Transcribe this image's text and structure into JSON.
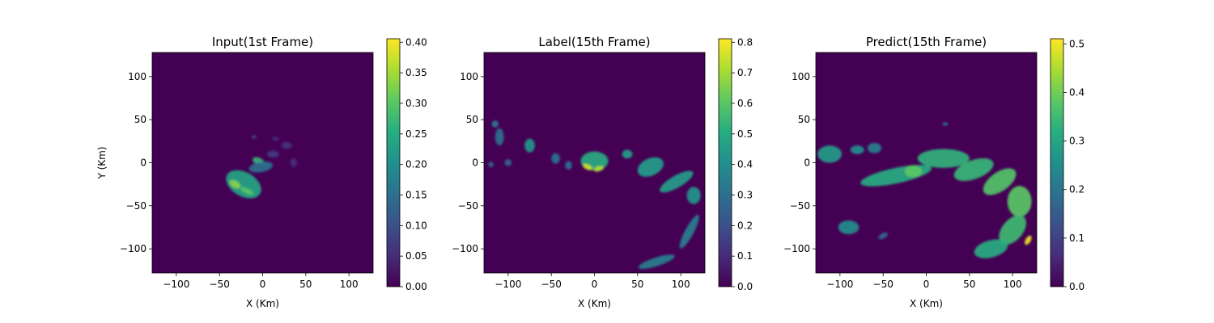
{
  "chart_data": [
    {
      "type": "heatmap",
      "title": "Input(1st Frame)",
      "xlabel": "X (Km)",
      "ylabel": "Y (Km)",
      "xlim": [
        -128,
        128
      ],
      "ylim": [
        -128,
        128
      ],
      "xticks": [
        -100,
        -50,
        0,
        50,
        100
      ],
      "yticks": [
        100,
        50,
        0,
        -50,
        -100
      ],
      "colormap": "viridis",
      "background_value": 0.0,
      "colorbar": {
        "range": [
          0.0,
          0.4057
        ],
        "ticks": [
          "0.00",
          "0.05",
          "0.10",
          "0.15",
          "0.20",
          "0.25",
          "0.30",
          "0.35",
          "0.40"
        ]
      },
      "features": [
        {
          "cx": -22,
          "cy": -25,
          "rx": 22,
          "ry": 14,
          "rot": 30,
          "value": 0.24
        },
        {
          "cx": -32,
          "cy": -25,
          "rx": 7,
          "ry": 4,
          "rot": 30,
          "value": 0.33
        },
        {
          "cx": -18,
          "cy": -33,
          "rx": 8,
          "ry": 3,
          "rot": 25,
          "value": 0.3
        },
        {
          "cx": -5,
          "cy": 2,
          "rx": 7,
          "ry": 4,
          "rot": 20,
          "value": 0.27
        },
        {
          "cx": -2,
          "cy": -5,
          "rx": 14,
          "ry": 6,
          "rot": -10,
          "value": 0.15
        },
        {
          "cx": 12,
          "cy": 10,
          "rx": 7,
          "ry": 4,
          "rot": 0,
          "value": 0.07
        },
        {
          "cx": 28,
          "cy": 20,
          "rx": 6,
          "ry": 4,
          "rot": 0,
          "value": 0.06
        },
        {
          "cx": 36,
          "cy": 0,
          "rx": 4,
          "ry": 5,
          "rot": 0,
          "value": 0.05
        },
        {
          "cx": -10,
          "cy": 30,
          "rx": 3,
          "ry": 2,
          "rot": 0,
          "value": 0.08
        },
        {
          "cx": 15,
          "cy": 28,
          "rx": 4,
          "ry": 2,
          "rot": 0,
          "value": 0.06
        }
      ]
    },
    {
      "type": "heatmap",
      "title": "Label(15th Frame)",
      "xlabel": "X (Km)",
      "ylabel": "",
      "xlim": [
        -128,
        128
      ],
      "ylim": [
        -128,
        128
      ],
      "xticks": [
        -100,
        -50,
        0,
        50,
        100
      ],
      "yticks": [
        100,
        50,
        0,
        -50,
        -100
      ],
      "colormap": "viridis",
      "background_value": 0.0,
      "colorbar": {
        "range": [
          0.0,
          0.8114
        ],
        "ticks": [
          "0.0",
          "0.1",
          "0.2",
          "0.3",
          "0.4",
          "0.5",
          "0.6",
          "0.7",
          "0.8"
        ]
      },
      "features": [
        {
          "cx": 0,
          "cy": 2,
          "rx": 16,
          "ry": 11,
          "rot": 0,
          "value": 0.5
        },
        {
          "cx": -8,
          "cy": -5,
          "rx": 6,
          "ry": 3,
          "rot": 25,
          "value": 0.75
        },
        {
          "cx": 5,
          "cy": -7,
          "rx": 6,
          "ry": 3,
          "rot": -15,
          "value": 0.72
        },
        {
          "cx": 38,
          "cy": 10,
          "rx": 6,
          "ry": 5,
          "rot": 0,
          "value": 0.45
        },
        {
          "cx": 65,
          "cy": -5,
          "rx": 16,
          "ry": 10,
          "rot": -25,
          "value": 0.45
        },
        {
          "cx": 95,
          "cy": -22,
          "rx": 22,
          "ry": 7,
          "rot": -30,
          "value": 0.45
        },
        {
          "cx": 115,
          "cy": -38,
          "rx": 8,
          "ry": 10,
          "rot": 0,
          "value": 0.42
        },
        {
          "cx": 110,
          "cy": -80,
          "rx": 22,
          "ry": 5,
          "rot": -62,
          "value": 0.35
        },
        {
          "cx": 72,
          "cy": -115,
          "rx": 22,
          "ry": 5,
          "rot": -18,
          "value": 0.35
        },
        {
          "cx": -75,
          "cy": 20,
          "rx": 6,
          "ry": 8,
          "rot": 0,
          "value": 0.42
        },
        {
          "cx": -110,
          "cy": 30,
          "rx": 5,
          "ry": 10,
          "rot": 0,
          "value": 0.3
        },
        {
          "cx": -115,
          "cy": 45,
          "rx": 4,
          "ry": 4,
          "rot": 0,
          "value": 0.32
        },
        {
          "cx": -100,
          "cy": 0,
          "rx": 4,
          "ry": 4,
          "rot": 0,
          "value": 0.28
        },
        {
          "cx": -45,
          "cy": 5,
          "rx": 5,
          "ry": 6,
          "rot": 0,
          "value": 0.3
        },
        {
          "cx": -30,
          "cy": -3,
          "rx": 4,
          "ry": 5,
          "rot": 0,
          "value": 0.3
        },
        {
          "cx": -120,
          "cy": -2,
          "rx": 3,
          "ry": 3,
          "rot": 0,
          "value": 0.3
        }
      ]
    },
    {
      "type": "heatmap",
      "title": "Predict(15th Frame)",
      "xlabel": "X (Km)",
      "ylabel": "",
      "xlim": [
        -128,
        128
      ],
      "ylim": [
        -128,
        128
      ],
      "xticks": [
        -100,
        -50,
        0,
        50,
        100
      ],
      "yticks": [
        100,
        50,
        0,
        -50,
        -100
      ],
      "colormap": "viridis",
      "background_value": 0.0,
      "colorbar": {
        "range": [
          0.0,
          0.5106
        ],
        "ticks": [
          "0.0",
          "0.1",
          "0.2",
          "0.3",
          "0.4",
          "0.5"
        ]
      },
      "features": [
        {
          "cx": -35,
          "cy": -15,
          "rx": 42,
          "ry": 9,
          "rot": -12,
          "value": 0.32
        },
        {
          "cx": -15,
          "cy": -10,
          "rx": 10,
          "ry": 7,
          "rot": 0,
          "value": 0.38
        },
        {
          "cx": 20,
          "cy": 5,
          "rx": 30,
          "ry": 11,
          "rot": 0,
          "value": 0.33
        },
        {
          "cx": 55,
          "cy": -8,
          "rx": 24,
          "ry": 11,
          "rot": -20,
          "value": 0.34
        },
        {
          "cx": 85,
          "cy": -22,
          "rx": 22,
          "ry": 11,
          "rot": -35,
          "value": 0.37
        },
        {
          "cx": 108,
          "cy": -45,
          "rx": 14,
          "ry": 18,
          "rot": 0,
          "value": 0.38
        },
        {
          "cx": 100,
          "cy": -78,
          "rx": 20,
          "ry": 12,
          "rot": -50,
          "value": 0.35
        },
        {
          "cx": 75,
          "cy": -100,
          "rx": 20,
          "ry": 10,
          "rot": -15,
          "value": 0.32
        },
        {
          "cx": 118,
          "cy": -90,
          "rx": 6,
          "ry": 3,
          "rot": -60,
          "value": 0.5
        },
        {
          "cx": -112,
          "cy": 10,
          "rx": 14,
          "ry": 10,
          "rot": 0,
          "value": 0.28
        },
        {
          "cx": -80,
          "cy": 15,
          "rx": 8,
          "ry": 5,
          "rot": 0,
          "value": 0.25
        },
        {
          "cx": -60,
          "cy": 17,
          "rx": 8,
          "ry": 6,
          "rot": 0,
          "value": 0.22
        },
        {
          "cx": -90,
          "cy": -75,
          "rx": 12,
          "ry": 8,
          "rot": 0,
          "value": 0.25
        },
        {
          "cx": -50,
          "cy": -85,
          "rx": 6,
          "ry": 3,
          "rot": -30,
          "value": 0.18
        },
        {
          "cx": 22,
          "cy": 45,
          "rx": 3,
          "ry": 2,
          "rot": 0,
          "value": 0.2
        }
      ]
    }
  ]
}
